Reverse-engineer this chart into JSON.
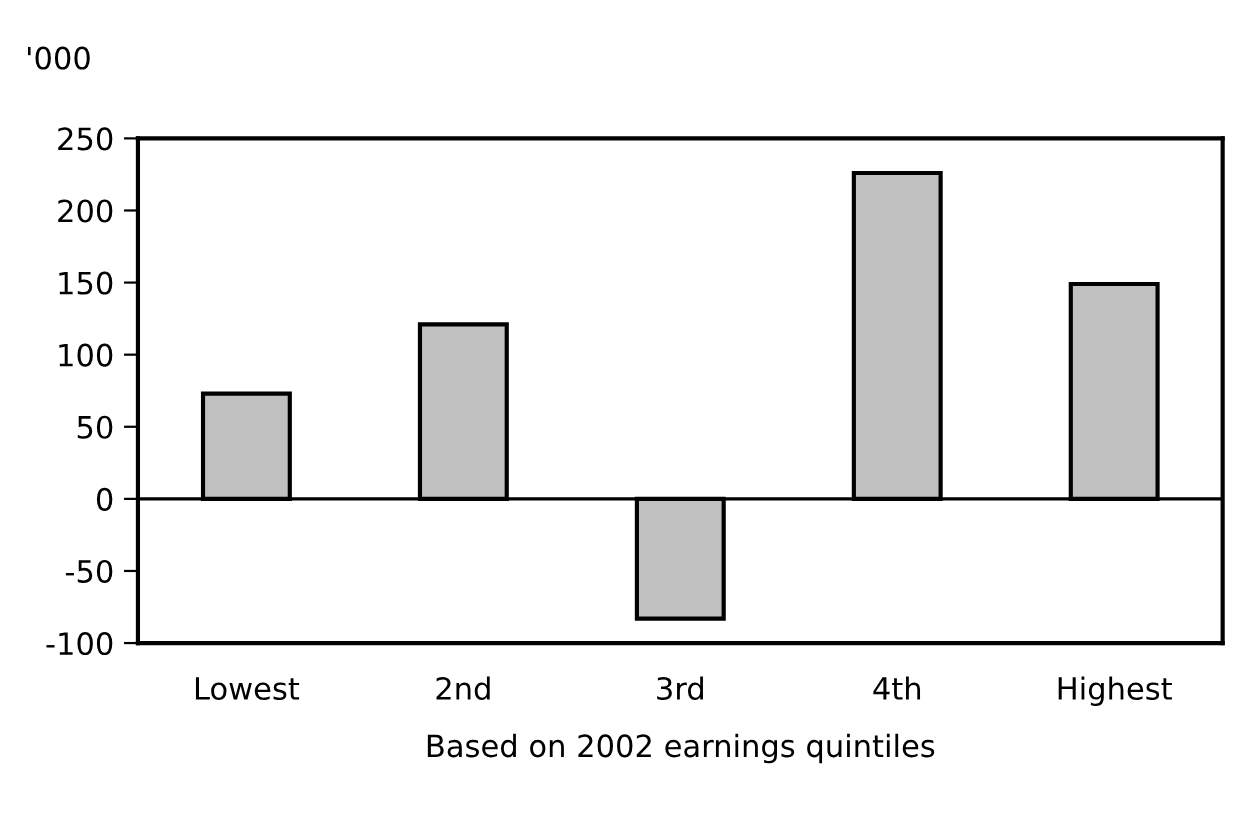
{
  "chart_data": {
    "type": "bar",
    "ylabel": "'000",
    "xlabel": "Based on 2002 earnings quintiles",
    "categories": [
      "Lowest",
      "2nd",
      "3rd",
      "4th",
      "Highest"
    ],
    "values": [
      73,
      121,
      -83,
      226,
      149
    ],
    "color": "#c0c0c0",
    "ylim": [
      -100,
      250
    ],
    "yticks": [
      -100,
      -50,
      0,
      50,
      100,
      150,
      200,
      250
    ],
    "legend": false
  }
}
